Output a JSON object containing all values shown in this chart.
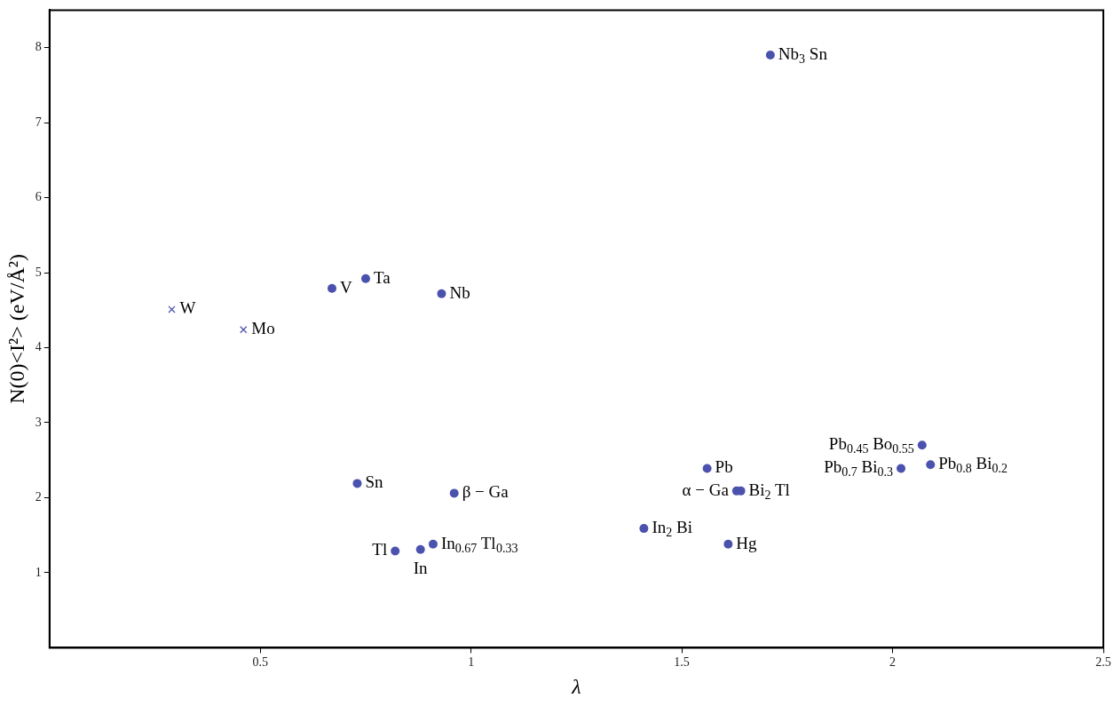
{
  "chart_data": {
    "type": "scatter",
    "xlabel": "λ",
    "ylabel": "N(0)<I²> (eV/Å²)",
    "xlim": [
      0,
      2.5
    ],
    "ylim": [
      0,
      8.5
    ],
    "xticks": [
      0.5,
      1,
      1.5,
      2,
      2.5
    ],
    "yticks": [
      1,
      2,
      3,
      4,
      5,
      6,
      7,
      8
    ],
    "grid": false,
    "legend": false,
    "series": [
      {
        "color": "#4b52ad",
        "marker": "circle",
        "x": [
          0.67,
          0.75,
          0.93,
          1.71,
          0.73,
          0.96,
          0.82,
          0.88,
          0.91,
          1.41,
          1.56,
          1.63,
          1.64,
          1.61,
          2.07,
          2.02,
          2.09
        ],
        "values": [
          4.79,
          4.92,
          4.72,
          7.9,
          2.19,
          2.06,
          1.29,
          1.31,
          1.38,
          1.59,
          2.39,
          2.09,
          2.09,
          1.38,
          2.7,
          2.39,
          2.44
        ]
      },
      {
        "color": "#4b52ad",
        "marker": "cross",
        "x": [
          0.29,
          0.46
        ],
        "values": [
          4.51,
          4.24
        ]
      }
    ],
    "annotations": [
      {
        "text": "W",
        "x": 0.29,
        "y": 4.51
      },
      {
        "text": "Mo",
        "x": 0.46,
        "y": 4.24
      },
      {
        "text": "V",
        "x": 0.67,
        "y": 4.79
      },
      {
        "text": "Ta",
        "x": 0.75,
        "y": 4.92
      },
      {
        "text": "Nb",
        "x": 0.93,
        "y": 4.72
      },
      {
        "text": "Nb$_{3}$ Sn",
        "x": 1.71,
        "y": 7.9
      },
      {
        "text": "Sn",
        "x": 0.73,
        "y": 2.19
      },
      {
        "text": "β − Ga",
        "x": 0.96,
        "y": 2.06
      },
      {
        "text": "In$_{0.67}$ Tl$_{0.33}$",
        "x": 0.91,
        "y": 1.38
      },
      {
        "text": "In",
        "x": 0.88,
        "y": 1.31
      },
      {
        "text": "Tl",
        "x": 0.82,
        "y": 1.29
      },
      {
        "text": "In$_{2}$ Bi",
        "x": 1.41,
        "y": 1.59
      },
      {
        "text": "Pb",
        "x": 1.56,
        "y": 2.39
      },
      {
        "text": "Bi$_{2}$ Tl",
        "x": 1.64,
        "y": 2.09
      },
      {
        "text": "α − Ga",
        "x": 1.63,
        "y": 2.09
      },
      {
        "text": "Hg",
        "x": 1.61,
        "y": 1.38
      },
      {
        "text": "Pb$_{0.8}$ Bi$_{0.2}$",
        "x": 2.09,
        "y": 2.44
      },
      {
        "text": "Pb$_{0.7}$ Bi$_{0.3}$",
        "x": 2.02,
        "y": 2.39
      },
      {
        "text": "Pb$_{0.45}$ Bo$_{0.55}$",
        "x": 2.07,
        "y": 2.7
      }
    ]
  }
}
